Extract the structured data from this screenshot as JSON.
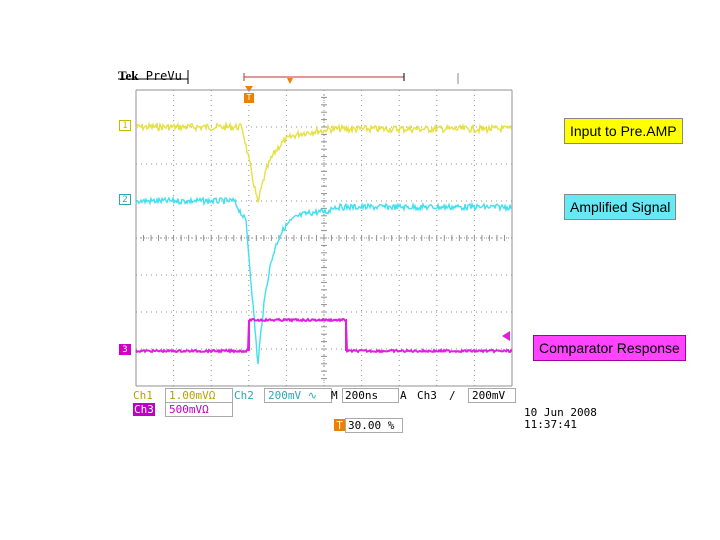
{
  "header": {
    "brand": "Tek",
    "mode": "PreVu"
  },
  "markers": {
    "ch1": "1",
    "ch2": "2",
    "ch3": "3",
    "trigger": "T"
  },
  "labels": {
    "ch1": "Input to Pre.AMP",
    "ch2": "Amplified Signal",
    "ch3": "Comparator Response"
  },
  "status": {
    "ch1_label": "Ch1",
    "ch1_scale": "1.00mVΩ",
    "ch2_label": "Ch2",
    "ch2_scale": "200mV ∿",
    "ch3_label": "Ch3",
    "ch3_scale": "500mVΩ",
    "m_label": "M",
    "m_value": "200ns",
    "a_label": "A",
    "trig_channel": "Ch3",
    "trig_slope": "∕",
    "trig_level": "200mV",
    "trig_pos_badge": "T",
    "trig_pos": "30.00 %",
    "date": "10 Jun  2008",
    "time": "11:37:41"
  },
  "colors": {
    "ch1": "#e6e040",
    "ch2": "#40e0f0",
    "ch3": "#e020e0",
    "trigger": "#f08000",
    "grid": "#909090"
  },
  "icons": {
    "trigger_arrow": "ch3-trigger-level-arrow"
  }
}
